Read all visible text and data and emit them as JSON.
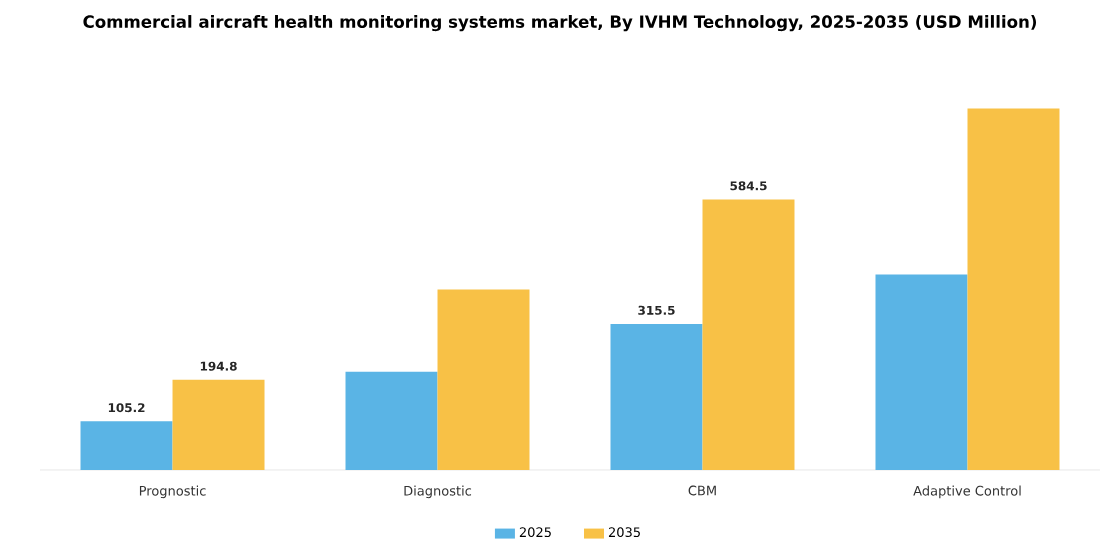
{
  "chart_data": {
    "type": "bar",
    "title": "Commercial aircraft health monitoring systems market, By IVHM Technology, 2025-2035 (USD Million)",
    "categories": [
      "Prognostic",
      "Diagnostic",
      "CBM",
      "Adaptive Control"
    ],
    "series": [
      {
        "name": "2025",
        "color": "#5ab4e5",
        "values": [
          105.2,
          212,
          315.5,
          422
        ],
        "value_labels": [
          "105.2",
          null,
          "315.5",
          null
        ]
      },
      {
        "name": "2035",
        "color": "#f8c146",
        "values": [
          194.8,
          390,
          584.5,
          781
        ],
        "value_labels": [
          "194.8",
          null,
          "584.5",
          null
        ]
      }
    ],
    "legend": "bottom"
  }
}
